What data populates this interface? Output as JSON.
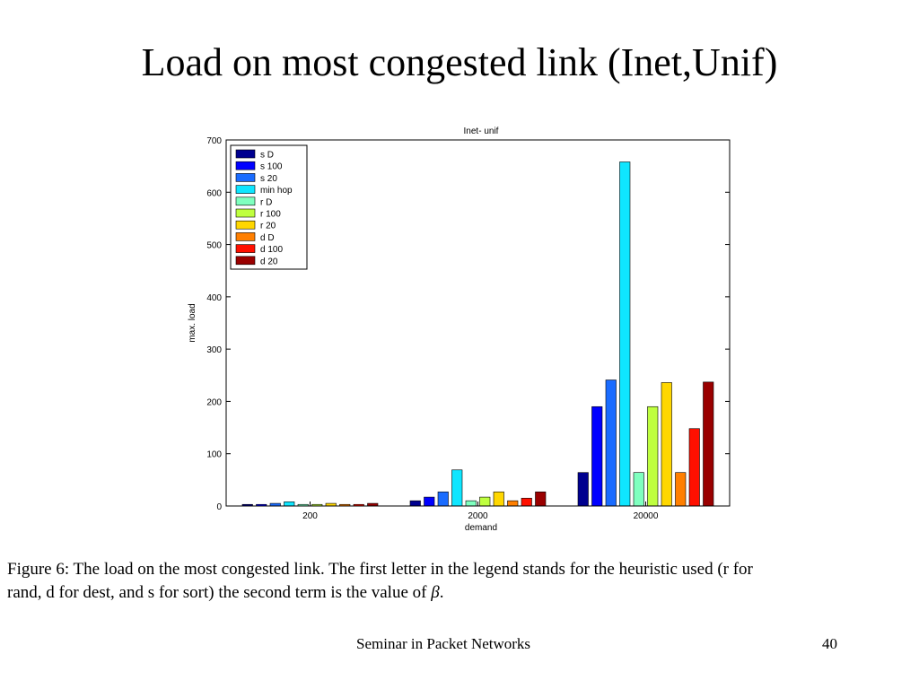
{
  "slide": {
    "title": "Load on most congested link (Inet,Unif)",
    "caption_line1": "Figure 6: The load on the most congested link. The first letter in the legend stands for the heuristic used (r for",
    "caption_line2_prefix": "rand, d for dest, and s for sort) the second term is the value of ",
    "caption_symbol": "β",
    "caption_line2_suffix": ".",
    "footer": "Seminar in Packet Networks",
    "page_number": "40"
  },
  "chart_data": {
    "type": "bar",
    "title": "Inet- unif",
    "xlabel": "demand",
    "ylabel": "max. load",
    "categories": [
      "200",
      "2000",
      "20000"
    ],
    "ylim": [
      0,
      700
    ],
    "yticks": [
      0,
      100,
      200,
      300,
      400,
      500,
      600,
      700
    ],
    "legend_position": "top-left",
    "series": [
      {
        "name": "s D",
        "color": "#00008f",
        "values": [
          3,
          10,
          64
        ]
      },
      {
        "name": "s 100",
        "color": "#0000ff",
        "values": [
          3,
          17,
          190
        ]
      },
      {
        "name": "s 20",
        "color": "#1a6cff",
        "values": [
          5,
          27,
          241
        ]
      },
      {
        "name": "min hop",
        "color": "#0fe6ff",
        "values": [
          8,
          69,
          658
        ]
      },
      {
        "name": "r D",
        "color": "#7fffbf",
        "values": [
          3,
          10,
          64
        ]
      },
      {
        "name": "r 100",
        "color": "#bfff3f",
        "values": [
          3,
          17,
          190
        ]
      },
      {
        "name": "r 20",
        "color": "#ffd700",
        "values": [
          5,
          27,
          236
        ]
      },
      {
        "name": "d D",
        "color": "#ff7f00",
        "values": [
          3,
          10,
          64
        ]
      },
      {
        "name": "d 100",
        "color": "#ff1000",
        "values": [
          3,
          15,
          148
        ]
      },
      {
        "name": "d 20",
        "color": "#9a0000",
        "values": [
          5,
          27,
          237
        ]
      }
    ]
  }
}
